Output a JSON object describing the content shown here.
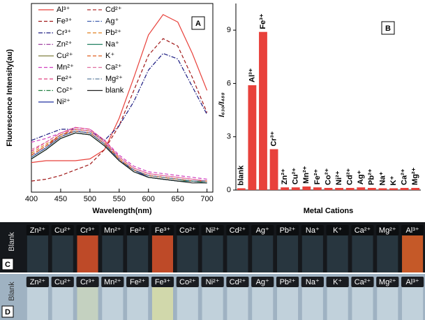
{
  "chart_data": [
    {
      "type": "line",
      "panel": "A",
      "xlabel": "Wavelength(nm)",
      "ylabel": "Fluorescence Intensity(au)",
      "x": [
        400,
        425,
        450,
        475,
        500,
        525,
        550,
        575,
        600,
        625,
        650,
        675,
        700
      ],
      "xlim": [
        400,
        710
      ],
      "xticks": [
        400,
        450,
        500,
        550,
        600,
        650,
        700
      ],
      "ylim": [
        0,
        102
      ],
      "series": [
        {
          "name": "Al³⁺",
          "color": "#e8413b",
          "dash": "solid",
          "values": [
            16,
            17,
            17,
            17,
            18,
            23,
            40,
            62,
            85,
            96,
            92,
            75,
            55
          ]
        },
        {
          "name": "Fe³⁺",
          "color": "#a01818",
          "dash": "dash",
          "values": [
            6,
            7,
            9,
            12,
            15,
            23,
            36,
            55,
            74,
            83,
            79,
            62,
            43
          ]
        },
        {
          "name": "Cr³⁺",
          "color": "#1a1a80",
          "dash": "dashdot",
          "values": [
            28,
            31,
            34,
            34,
            33,
            28,
            36,
            49,
            66,
            75,
            72,
            57,
            42
          ]
        },
        {
          "name": "Zn²⁺",
          "color": "#a040a0",
          "dash": "dashdot",
          "values": [
            20,
            25,
            31,
            34,
            33,
            27,
            18,
            12,
            9,
            8,
            7,
            6,
            6
          ]
        },
        {
          "name": "Cu²⁺",
          "color": "#808040",
          "dash": "solid",
          "values": [
            19,
            24,
            30,
            33,
            32,
            26,
            17,
            12,
            9,
            8,
            7,
            6,
            6
          ]
        },
        {
          "name": "Mn²⁺",
          "color": "#d040c0",
          "dash": "dash",
          "values": [
            27,
            29,
            32,
            35,
            34,
            28,
            20,
            14,
            11,
            10,
            9,
            8,
            7
          ]
        },
        {
          "name": "Fe²⁺",
          "color": "#e04080",
          "dash": "dash",
          "values": [
            22,
            27,
            32,
            35,
            34,
            28,
            19,
            13,
            10,
            9,
            8,
            7,
            6
          ]
        },
        {
          "name": "Co²⁺",
          "color": "#208040",
          "dash": "dashdot",
          "values": [
            18,
            23,
            29,
            32,
            31,
            25,
            17,
            11,
            8,
            7,
            6,
            6,
            5
          ]
        },
        {
          "name": "Ni²⁺",
          "color": "#2030a0",
          "dash": "solid",
          "values": [
            19,
            24,
            30,
            33,
            32,
            26,
            17,
            12,
            8,
            7,
            6,
            6,
            5
          ]
        },
        {
          "name": "Cd²⁺",
          "color": "#b03030",
          "dash": "dash",
          "values": [
            20,
            25,
            31,
            33,
            32,
            26,
            17,
            12,
            9,
            8,
            7,
            6,
            6
          ]
        },
        {
          "name": "Ag⁺",
          "color": "#4060b0",
          "dash": "dashdot",
          "values": [
            19,
            24,
            30,
            33,
            32,
            26,
            18,
            12,
            9,
            8,
            7,
            6,
            6
          ]
        },
        {
          "name": "Pb²⁺",
          "color": "#e08020",
          "dash": "dash",
          "values": [
            21,
            26,
            31,
            34,
            33,
            27,
            18,
            12,
            9,
            8,
            7,
            6,
            6
          ]
        },
        {
          "name": "Na⁺",
          "color": "#208060",
          "dash": "solid",
          "values": [
            18,
            23,
            29,
            32,
            31,
            25,
            17,
            11,
            8,
            7,
            6,
            6,
            5
          ]
        },
        {
          "name": "K⁺",
          "color": "#e06020",
          "dash": "dash",
          "values": [
            20,
            25,
            30,
            33,
            32,
            26,
            17,
            12,
            9,
            8,
            7,
            6,
            6
          ]
        },
        {
          "name": "Ca²⁺",
          "color": "#e070a0",
          "dash": "dash",
          "values": [
            23,
            27,
            32,
            34,
            33,
            27,
            19,
            13,
            10,
            9,
            8,
            7,
            6
          ]
        },
        {
          "name": "Mg²⁺",
          "color": "#6080a0",
          "dash": "dashdot",
          "values": [
            19,
            24,
            30,
            33,
            32,
            26,
            17,
            12,
            9,
            8,
            7,
            6,
            6
          ]
        },
        {
          "name": "blank",
          "color": "#222222",
          "dash": "solid",
          "values": [
            18,
            23,
            29,
            32,
            31,
            25,
            17,
            11,
            8,
            7,
            6,
            5,
            5
          ]
        }
      ]
    },
    {
      "type": "bar",
      "panel": "B",
      "xlabel": "Metal Cations",
      "ylabel": "I₆₃₀/I₄₈₈",
      "color": "#e8413b",
      "categories": [
        "blank",
        "Al³⁺",
        "Fe³⁺",
        "Cr³⁺",
        "Zn²⁺",
        "Cu²⁺",
        "Mn²⁺",
        "Fe²⁺",
        "Co²⁺",
        "Ni²⁺",
        "Cd²⁺",
        "Ag⁺",
        "Pb²⁺",
        "Na⁺",
        "K⁺",
        "Ca²⁺",
        "Mg²⁺"
      ],
      "values": [
        0.1,
        5.9,
        8.9,
        2.3,
        0.15,
        0.15,
        0.2,
        0.15,
        0.12,
        0.12,
        0.12,
        0.15,
        0.12,
        0.1,
        0.1,
        0.12,
        0.12
      ],
      "ylim": [
        0,
        10.5
      ],
      "yticks": [
        0,
        3,
        6,
        9
      ]
    }
  ],
  "photos": [
    {
      "panel": "C",
      "side_label": "Blank",
      "background": "#15181c",
      "labels": [
        "Zn²⁺",
        "Cu²⁺",
        "Cr³⁺",
        "Mn²⁺",
        "Fe²⁺",
        "Fe³⁺",
        "Co²⁺",
        "Ni²⁺",
        "Cd²⁺",
        "Ag⁺",
        "Pb²⁺",
        "Na⁺",
        "K⁺",
        "Ca²⁺",
        "Mg²⁺",
        "Al³⁺"
      ],
      "vial_colors": [
        "#2a3a44",
        "#2a3a44",
        "#d0502a",
        "#2a3a44",
        "#2a3a44",
        "#d0502a",
        "#2a3a44",
        "#2a3a44",
        "#2a3a44",
        "#2a3a44",
        "#2a3a44",
        "#2a3a44",
        "#2a3a44",
        "#2a3a44",
        "#2a3a44",
        "#d8602a"
      ]
    },
    {
      "panel": "D",
      "side_label": "Blank",
      "background": "#9fb2c2",
      "labels": [
        "Zn²⁺",
        "Cu²⁺",
        "Cr³⁺",
        "Mn²⁺",
        "Fe²⁺",
        "Fe³⁺",
        "Co²⁺",
        "Ni²⁺",
        "Cd²⁺",
        "Ag⁺",
        "Pb²⁺",
        "Na⁺",
        "K⁺",
        "Ca²⁺",
        "Mg²⁺",
        "Al³⁺"
      ],
      "vial_colors": [
        "#c4d4de",
        "#c4d4de",
        "#c8d4c0",
        "#c4d4de",
        "#c4d4de",
        "#d6dca8",
        "#c4d4de",
        "#c4d4de",
        "#c4d4de",
        "#c4d4de",
        "#c4d4de",
        "#c4d4de",
        "#c4d4de",
        "#c4d4de",
        "#c4d4de",
        "#c4d4de"
      ]
    }
  ]
}
